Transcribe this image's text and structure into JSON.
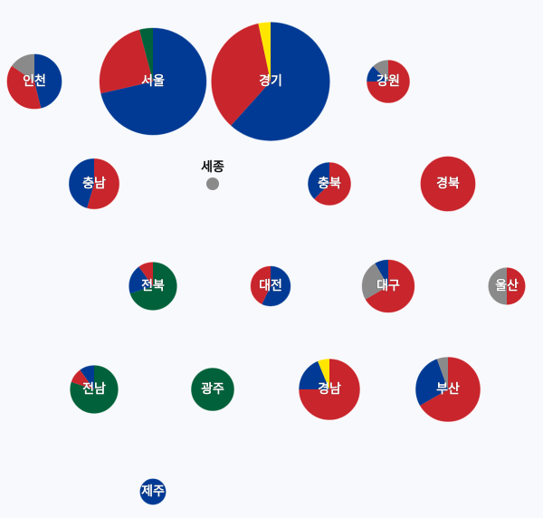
{
  "chart_data": {
    "type": "pie",
    "parties": [
      {
        "key": "blue",
        "color": "#003a94"
      },
      {
        "key": "red",
        "color": "#c9252c"
      },
      {
        "key": "green",
        "color": "#00613a"
      },
      {
        "key": "yellow",
        "color": "#ffe600"
      },
      {
        "key": "gray",
        "color": "#8a8a8a"
      }
    ],
    "regions": [
      {
        "name": "인천",
        "seats": 13,
        "values": {
          "blue": 6,
          "red": 5,
          "gray": 2
        }
      },
      {
        "name": "서울",
        "seats": 49,
        "values": {
          "blue": 35,
          "red": 12,
          "green": 2
        }
      },
      {
        "name": "경기",
        "seats": 60,
        "values": {
          "blue": 37,
          "red": 21,
          "yellow": 2
        }
      },
      {
        "name": "강원",
        "seats": 8,
        "values": {
          "red": 6,
          "blue": 1,
          "gray": 1
        }
      },
      {
        "name": "충남",
        "seats": 11,
        "values": {
          "red": 6,
          "blue": 5
        }
      },
      {
        "name": "세종",
        "seats": 1,
        "values": {
          "gray": 1
        }
      },
      {
        "name": "충북",
        "seats": 8,
        "values": {
          "red": 5,
          "blue": 3
        }
      },
      {
        "name": "경북",
        "seats": 13,
        "values": {
          "red": 13
        }
      },
      {
        "name": "전북",
        "seats": 10,
        "values": {
          "green": 7,
          "blue": 2,
          "red": 1
        }
      },
      {
        "name": "대전",
        "seats": 7,
        "values": {
          "blue": 4,
          "red": 3
        }
      },
      {
        "name": "대구",
        "seats": 12,
        "values": {
          "red": 8,
          "gray": 3,
          "blue": 1
        }
      },
      {
        "name": "울산",
        "seats": 6,
        "values": {
          "red": 3,
          "gray": 3
        }
      },
      {
        "name": "전남",
        "seats": 10,
        "values": {
          "green": 8,
          "red": 1,
          "blue": 1
        }
      },
      {
        "name": "광주",
        "seats": 8,
        "values": {
          "green": 8
        }
      },
      {
        "name": "경남",
        "seats": 16,
        "values": {
          "red": 12,
          "blue": 3,
          "yellow": 1
        }
      },
      {
        "name": "부산",
        "seats": 18,
        "values": {
          "red": 12,
          "blue": 5,
          "gray": 1
        }
      },
      {
        "name": "제주",
        "seats": 3,
        "values": {
          "blue": 3
        }
      }
    ]
  }
}
